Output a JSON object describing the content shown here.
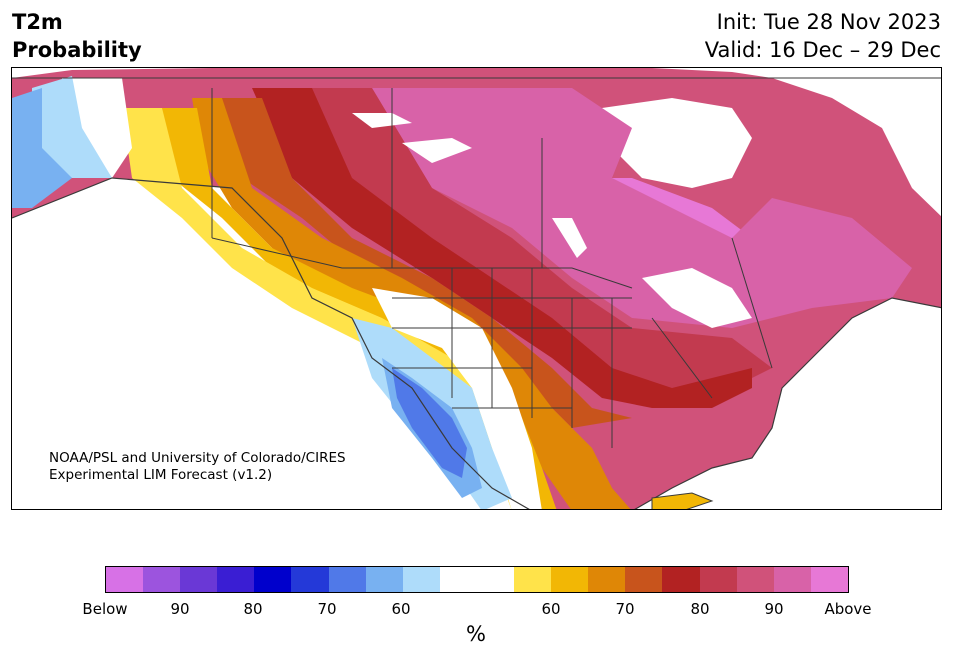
{
  "header": {
    "title_line1": "T2m",
    "title_line2": "Probability",
    "init": "Init: Tue 28 Nov 2023",
    "valid": "Valid: 16 Dec – 29 Dec"
  },
  "credit": {
    "line1": "NOAA/PSL and University of Colorado/CIRES",
    "line2": "Experimental LIM Forecast (v1.2)"
  },
  "colorbar": {
    "colors": [
      "#d771e6",
      "#9c54de",
      "#6a38d6",
      "#3a1ed3",
      "#0000cc",
      "#2439d8",
      "#5079e8",
      "#78b1f1",
      "#aedcfa",
      "#ffffff",
      "#ffffff",
      "#ffe34a",
      "#f2b705",
      "#df8706",
      "#c8541c",
      "#b22222",
      "#c23a4f",
      "#d0527a",
      "#d862a8",
      "#e778d6"
    ],
    "ticks": [
      "Below",
      "90",
      "80",
      "70",
      "60",
      "60",
      "70",
      "80",
      "90",
      "Above"
    ],
    "unit": "%"
  },
  "map": {
    "colors": {
      "cold_light": "#aedcfa",
      "cold_mid": "#78b1f1",
      "cold_deep": "#5079e8",
      "warm_yellow": "#ffe34a",
      "warm_gold": "#f2b705",
      "warm_orange": "#df8706",
      "warm_rust": "#c8541c",
      "warm_red": "#b22222",
      "warm_crimson": "#c23a4f",
      "warm_rose": "#d0527a",
      "warm_pink": "#d862a8",
      "warm_violet": "#e778d6",
      "border": "#3a3a3a"
    }
  }
}
